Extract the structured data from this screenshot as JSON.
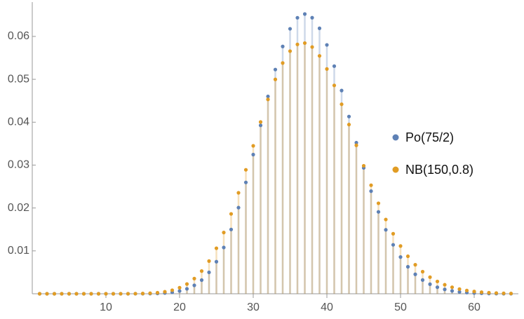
{
  "chart_data": {
    "type": "discrete",
    "x": [
      1,
      2,
      3,
      4,
      5,
      6,
      7,
      8,
      9,
      10,
      11,
      12,
      13,
      14,
      15,
      16,
      17,
      18,
      19,
      20,
      21,
      22,
      23,
      24,
      25,
      26,
      27,
      28,
      29,
      30,
      31,
      32,
      33,
      34,
      35,
      36,
      37,
      38,
      39,
      40,
      41,
      42,
      43,
      44,
      45,
      46,
      47,
      48,
      49,
      50,
      51,
      52,
      53,
      54,
      55,
      56,
      57,
      58,
      59,
      60,
      61,
      62,
      63,
      64,
      65
    ],
    "series": [
      {
        "name": "Po(75/2)",
        "color": "#5e81b5",
        "values": [
          0,
          0,
          0,
          0,
          0,
          0,
          0,
          0,
          0,
          0,
          0,
          0,
          0,
          1e-05,
          2e-05,
          4e-05,
          8e-05,
          0.00017,
          0.00034,
          0.00064,
          0.00115,
          0.00196,
          0.00319,
          0.00499,
          0.00748,
          0.01079,
          0.01499,
          0.02008,
          0.02596,
          0.03245,
          0.03926,
          0.04601,
          0.05228,
          0.05766,
          0.06178,
          0.06435,
          0.06522,
          0.06436,
          0.06189,
          0.05802,
          0.05307,
          0.04738,
          0.04132,
          0.03522,
          0.02935,
          0.02393,
          0.01909,
          0.01491,
          0.01141,
          0.00856,
          0.00629,
          0.00454,
          0.00321,
          0.00223,
          0.00152,
          0.00102,
          0.00067,
          0.00043,
          0.00028,
          0.00017,
          0.00011,
          6e-05,
          4e-05,
          2e-05,
          1e-05
        ]
      },
      {
        "name": "NB(150,0.8)",
        "color": "#e19c24",
        "values": [
          0,
          0,
          0,
          0,
          0,
          0,
          0,
          0,
          0,
          0,
          0,
          1e-05,
          1e-05,
          3e-05,
          6e-05,
          0.00013,
          0.00025,
          0.00047,
          0.00083,
          0.00141,
          0.00227,
          0.00354,
          0.00529,
          0.00762,
          0.01061,
          0.01428,
          0.01862,
          0.02354,
          0.0289,
          0.03449,
          0.04005,
          0.04531,
          0.04998,
          0.0538,
          0.05657,
          0.05814,
          0.05845,
          0.05753,
          0.05546,
          0.05241,
          0.04858,
          0.04418,
          0.03945,
          0.03461,
          0.02984,
          0.0253,
          0.0211,
          0.01732,
          0.014,
          0.01114,
          0.00874,
          0.00676,
          0.00515,
          0.00387,
          0.00287,
          0.0021,
          0.00152,
          0.00109,
          0.00077,
          0.00053,
          0.00037,
          0.00025,
          0.00017,
          0.00011,
          7e-05
        ]
      }
    ],
    "xlim": [
      0,
      66
    ],
    "xticks": [
      10,
      20,
      30,
      40,
      50,
      60
    ],
    "ylim": [
      0,
      0.068
    ],
    "yticks": [
      0.01,
      0.02,
      0.03,
      0.04,
      0.05,
      0.06
    ],
    "legend": "right",
    "filling": "axis"
  }
}
